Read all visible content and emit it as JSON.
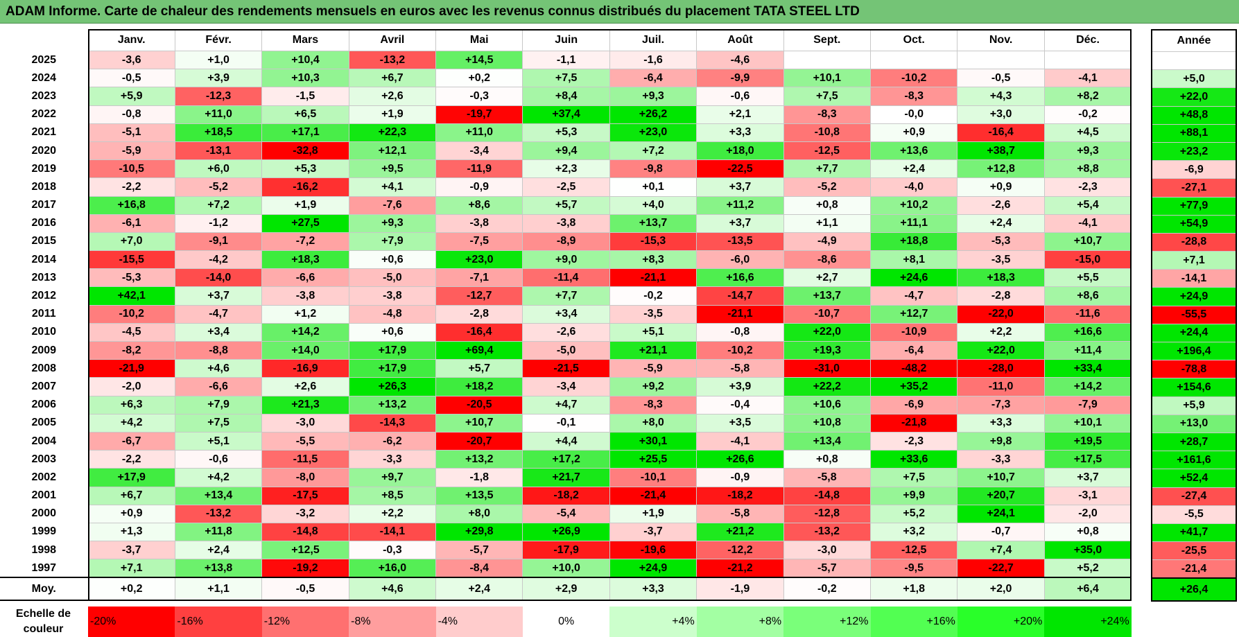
{
  "title": "ADAM Informe. Carte de chaleur des rendements mensuels en euros avec les revenus connus distribués du placement TATA STEEL LTD",
  "chart_data": {
    "type": "heatmap",
    "months": [
      "Janv.",
      "Févr.",
      "Mars",
      "Avril",
      "Mai",
      "Juin",
      "Juil.",
      "Août",
      "Sept.",
      "Oct.",
      "Nov.",
      "Déc."
    ],
    "annual_header": "Année",
    "rows": [
      {
        "year": "2025",
        "values": [
          "-3,6",
          "+1,0",
          "+10,4",
          "-13,2",
          "+14,5",
          "-1,1",
          "-1,6",
          "-4,6",
          "",
          "",
          "",
          ""
        ],
        "annual": ""
      },
      {
        "year": "2024",
        "values": [
          "-0,5",
          "+3,9",
          "+10,3",
          "+6,7",
          "+0,2",
          "+7,5",
          "-6,4",
          "-9,9",
          "+10,1",
          "-10,2",
          "-0,5",
          "-4,1"
        ],
        "annual": "+5,0"
      },
      {
        "year": "2023",
        "values": [
          "+5,9",
          "-12,3",
          "-1,5",
          "+2,6",
          "-0,3",
          "+8,4",
          "+9,3",
          "-0,6",
          "+7,5",
          "-8,3",
          "+4,3",
          "+8,2"
        ],
        "annual": "+22,0"
      },
      {
        "year": "2022",
        "values": [
          "-0,8",
          "+11,0",
          "+6,5",
          "+1,9",
          "-19,7",
          "+37,4",
          "+26,2",
          "+2,1",
          "-8,3",
          "-0,0",
          "+3,0",
          "-0,2"
        ],
        "annual": "+48,8"
      },
      {
        "year": "2021",
        "values": [
          "-5,1",
          "+18,5",
          "+17,1",
          "+22,3",
          "+11,0",
          "+5,3",
          "+23,0",
          "+3,3",
          "-10,8",
          "+0,9",
          "-16,4",
          "+4,5"
        ],
        "annual": "+88,1"
      },
      {
        "year": "2020",
        "values": [
          "-5,9",
          "-13,1",
          "-32,8",
          "+12,1",
          "-3,4",
          "+9,4",
          "+7,2",
          "+18,0",
          "-12,5",
          "+13,6",
          "+38,7",
          "+9,3"
        ],
        "annual": "+23,2"
      },
      {
        "year": "2019",
        "values": [
          "-10,5",
          "+6,0",
          "+5,3",
          "+9,5",
          "-11,9",
          "+2,3",
          "-9,8",
          "-22,5",
          "+7,7",
          "+2,4",
          "+12,8",
          "+8,8"
        ],
        "annual": "-6,9"
      },
      {
        "year": "2018",
        "values": [
          "-2,2",
          "-5,2",
          "-16,2",
          "+4,1",
          "-0,9",
          "-2,5",
          "+0,1",
          "+3,7",
          "-5,2",
          "-4,0",
          "+0,9",
          "-2,3"
        ],
        "annual": "-27,1"
      },
      {
        "year": "2017",
        "values": [
          "+16,8",
          "+7,2",
          "+1,9",
          "-7,6",
          "+8,6",
          "+5,7",
          "+4,0",
          "+11,2",
          "+0,8",
          "+10,2",
          "-2,6",
          "+5,4"
        ],
        "annual": "+77,9"
      },
      {
        "year": "2016",
        "values": [
          "-6,1",
          "-1,2",
          "+27,5",
          "+9,3",
          "-3,8",
          "-3,8",
          "+13,7",
          "+3,7",
          "+1,1",
          "+11,1",
          "+2,4",
          "-4,1"
        ],
        "annual": "+54,9"
      },
      {
        "year": "2015",
        "values": [
          "+7,0",
          "-9,1",
          "-7,2",
          "+7,9",
          "-7,5",
          "-8,9",
          "-15,3",
          "-13,5",
          "-4,9",
          "+18,8",
          "-5,3",
          "+10,7"
        ],
        "annual": "-28,8"
      },
      {
        "year": "2014",
        "values": [
          "-15,5",
          "-4,2",
          "+18,3",
          "+0,6",
          "+23,0",
          "+9,0",
          "+8,3",
          "-6,0",
          "-8,6",
          "+8,1",
          "-3,5",
          "-15,0"
        ],
        "annual": "+7,1"
      },
      {
        "year": "2013",
        "values": [
          "-5,3",
          "-14,0",
          "-6,6",
          "-5,0",
          "-7,1",
          "-11,4",
          "-21,1",
          "+16,6",
          "+2,7",
          "+24,6",
          "+18,3",
          "+5,5"
        ],
        "annual": "-14,1"
      },
      {
        "year": "2012",
        "values": [
          "+42,1",
          "+3,7",
          "-3,8",
          "-3,8",
          "-12,7",
          "+7,7",
          "-0,2",
          "-14,7",
          "+13,7",
          "-4,7",
          "-2,8",
          "+8,6"
        ],
        "annual": "+24,9"
      },
      {
        "year": "2011",
        "values": [
          "-10,2",
          "-4,7",
          "+1,2",
          "-4,8",
          "-2,8",
          "+3,4",
          "-3,5",
          "-21,1",
          "-10,7",
          "+12,7",
          "-22,0",
          "-11,6"
        ],
        "annual": "-55,5"
      },
      {
        "year": "2010",
        "values": [
          "-4,5",
          "+3,4",
          "+14,2",
          "+0,6",
          "-16,4",
          "-2,6",
          "+5,1",
          "-0,8",
          "+22,0",
          "-10,9",
          "+2,2",
          "+16,6"
        ],
        "annual": "+24,4"
      },
      {
        "year": "2009",
        "values": [
          "-8,2",
          "-8,8",
          "+14,0",
          "+17,9",
          "+69,4",
          "-5,0",
          "+21,1",
          "-10,2",
          "+19,3",
          "-6,4",
          "+22,0",
          "+11,4"
        ],
        "annual": "+196,4"
      },
      {
        "year": "2008",
        "values": [
          "-21,9",
          "+4,6",
          "-16,9",
          "+17,9",
          "+5,7",
          "-21,5",
          "-5,9",
          "-5,8",
          "-31,0",
          "-48,2",
          "-28,0",
          "+33,4"
        ],
        "annual": "-78,8"
      },
      {
        "year": "2007",
        "values": [
          "-2,0",
          "-6,6",
          "+2,6",
          "+26,3",
          "+18,2",
          "-3,4",
          "+9,2",
          "+3,9",
          "+22,2",
          "+35,2",
          "-11,0",
          "+14,2"
        ],
        "annual": "+154,6"
      },
      {
        "year": "2006",
        "values": [
          "+6,3",
          "+7,9",
          "+21,3",
          "+13,2",
          "-20,5",
          "+4,7",
          "-8,3",
          "-0,4",
          "+10,6",
          "-6,9",
          "-7,3",
          "-7,9"
        ],
        "annual": "+5,9"
      },
      {
        "year": "2005",
        "values": [
          "+4,2",
          "+7,5",
          "-3,0",
          "-14,3",
          "+10,7",
          "-0,1",
          "+8,0",
          "+3,5",
          "+10,8",
          "-21,8",
          "+3,3",
          "+10,1"
        ],
        "annual": "+13,0"
      },
      {
        "year": "2004",
        "values": [
          "-6,7",
          "+5,1",
          "-5,5",
          "-6,2",
          "-20,7",
          "+4,4",
          "+30,1",
          "-4,1",
          "+13,4",
          "-2,3",
          "+9,8",
          "+19,5"
        ],
        "annual": "+28,7"
      },
      {
        "year": "2003",
        "values": [
          "-2,2",
          "-0,6",
          "-11,5",
          "-3,3",
          "+13,2",
          "+17,2",
          "+25,5",
          "+26,6",
          "+0,8",
          "+33,6",
          "-3,3",
          "+17,5"
        ],
        "annual": "+161,6"
      },
      {
        "year": "2002",
        "values": [
          "+17,9",
          "+4,2",
          "-8,0",
          "+9,7",
          "-1,8",
          "+21,7",
          "-10,1",
          "-0,9",
          "-5,8",
          "+7,5",
          "+10,7",
          "+3,7"
        ],
        "annual": "+52,4"
      },
      {
        "year": "2001",
        "values": [
          "+6,7",
          "+13,4",
          "-17,5",
          "+8,5",
          "+13,5",
          "-18,2",
          "-21,4",
          "-18,2",
          "-14,8",
          "+9,9",
          "+20,7",
          "-3,1"
        ],
        "annual": "-27,4"
      },
      {
        "year": "2000",
        "values": [
          "+0,9",
          "-13,2",
          "-3,2",
          "+2,2",
          "+8,0",
          "-5,4",
          "+1,9",
          "-5,8",
          "-12,8",
          "+5,2",
          "+24,1",
          "-2,0"
        ],
        "annual": "-5,5"
      },
      {
        "year": "1999",
        "values": [
          "+1,3",
          "+11,8",
          "-14,8",
          "-14,1",
          "+29,8",
          "+26,9",
          "-3,7",
          "+21,2",
          "-13,2",
          "+3,2",
          "-0,7",
          "+0,8"
        ],
        "annual": "+41,7"
      },
      {
        "year": "1998",
        "values": [
          "-3,7",
          "+2,4",
          "+12,5",
          "-0,3",
          "-5,7",
          "-17,9",
          "-19,6",
          "-12,2",
          "-3,0",
          "-12,5",
          "+7,4",
          "+35,0"
        ],
        "annual": "-25,5"
      },
      {
        "year": "1997",
        "values": [
          "+7,1",
          "+13,8",
          "-19,2",
          "+16,0",
          "-8,4",
          "+10,0",
          "+24,9",
          "-21,2",
          "-5,7",
          "-9,5",
          "-22,7",
          "+5,2"
        ],
        "annual": "-21,4"
      }
    ],
    "average": {
      "label": "Moy.",
      "values": [
        "+0,2",
        "+1,1",
        "-0,5",
        "+4,6",
        "+2,4",
        "+2,9",
        "+3,3",
        "-1,9",
        "-0,2",
        "+1,8",
        "+2,0",
        "+6,4"
      ],
      "annual": "+26,4"
    },
    "scale": {
      "label_line1": "Echelle de",
      "label_line2": "couleur",
      "items": [
        "-20%",
        "-16%",
        "-12%",
        "-8%",
        "-4%",
        "0%",
        "+4%",
        "+8%",
        "+12%",
        "+16%",
        "+20%",
        "+24%"
      ],
      "colors": [
        "#ff0000",
        "#ff4040",
        "#ff7070",
        "#ff9e9e",
        "#ffcccc",
        "#ffffff",
        "#ccffcc",
        "#a3ffa3",
        "#7aff7a",
        "#52ff52",
        "#29ff29",
        "#00e600"
      ]
    }
  }
}
